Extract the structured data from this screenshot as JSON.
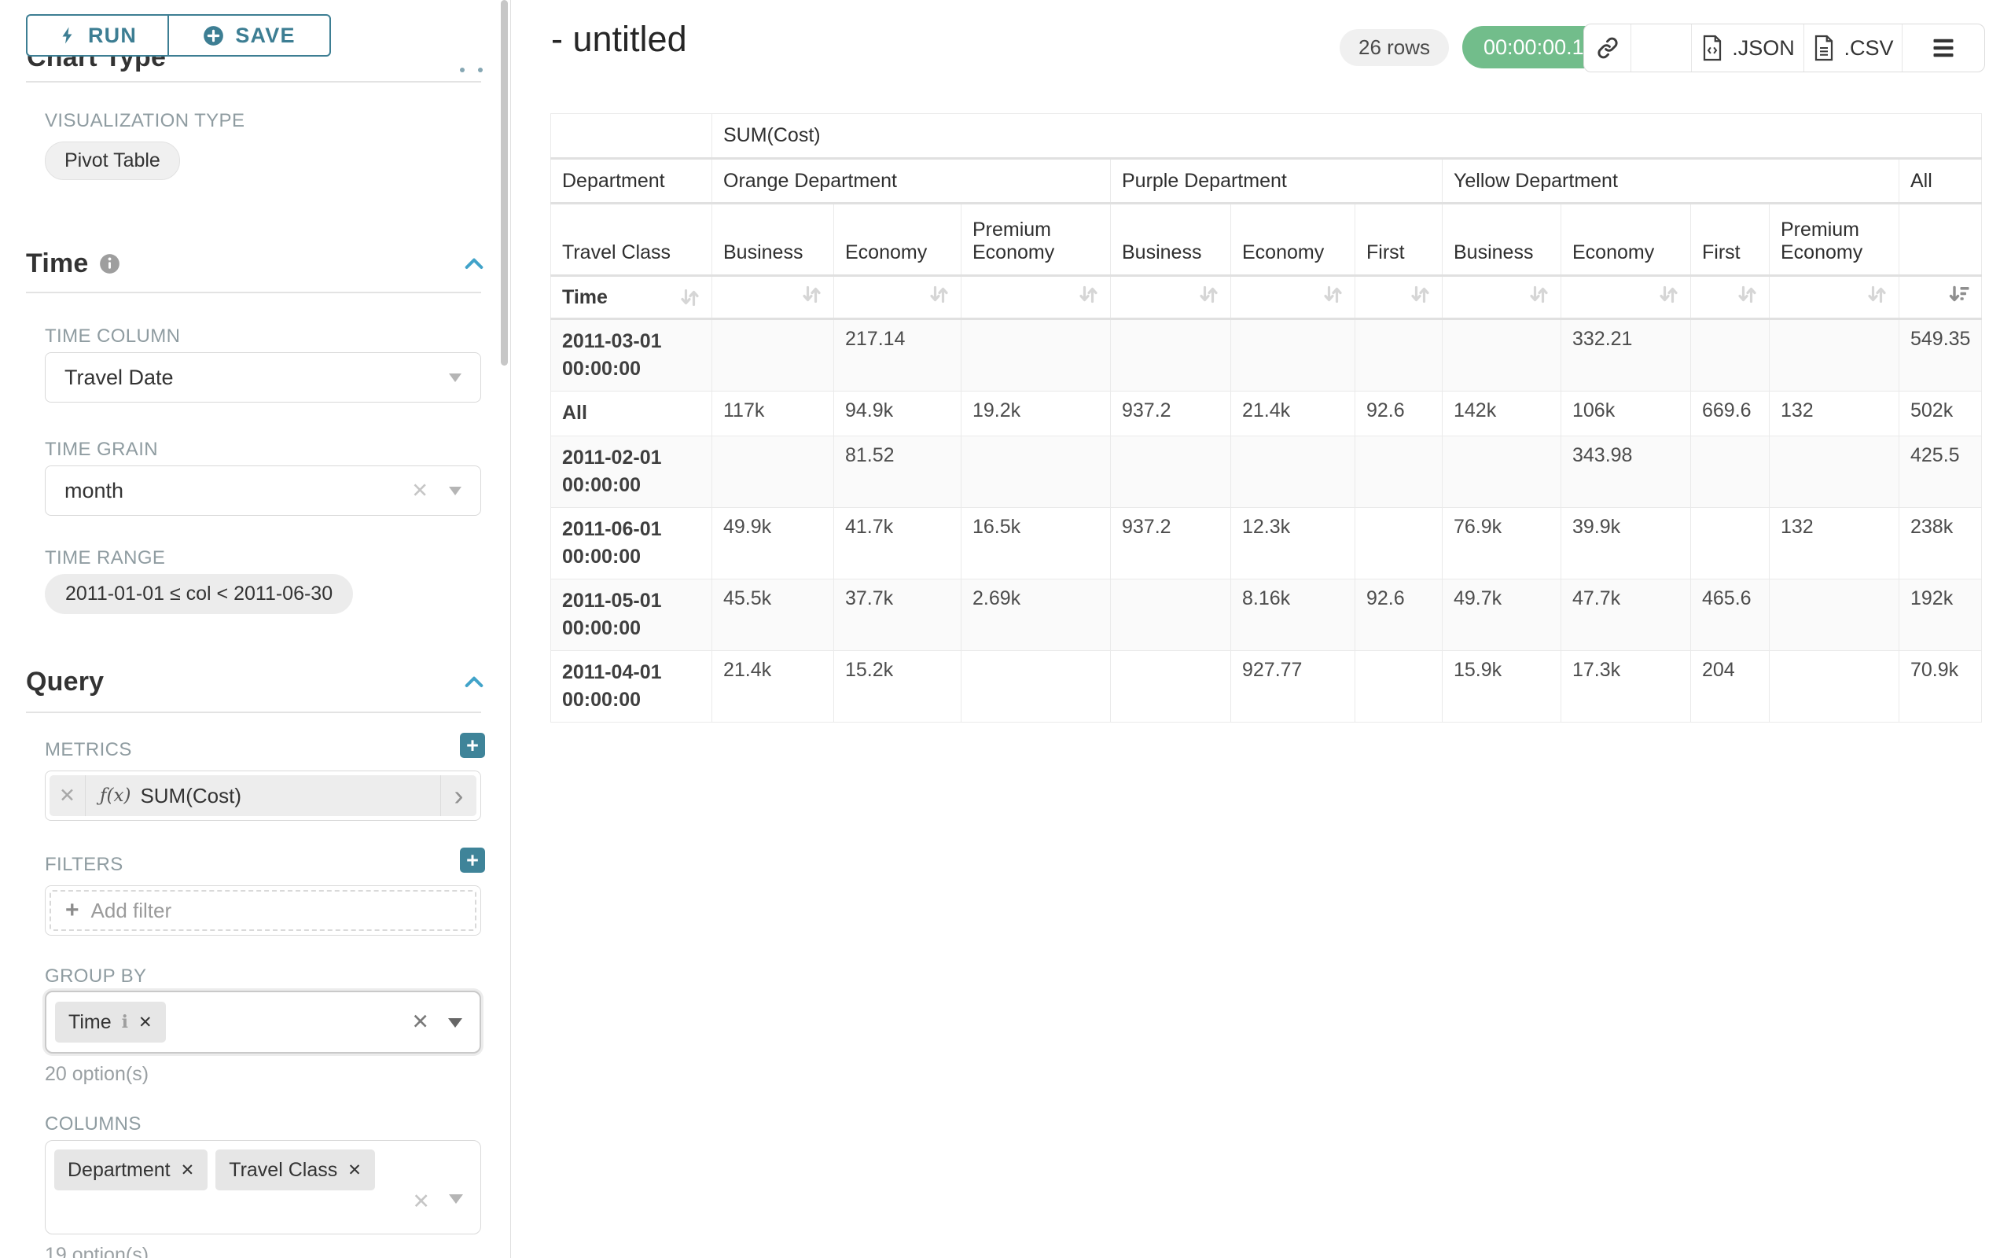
{
  "colors": {
    "accent": "#3d7e93",
    "section_chevron": "#41a3c9",
    "timer_green": "#72bd8b"
  },
  "sidebar": {
    "run_label": "RUN",
    "save_label": "SAVE",
    "chart_type_heading": "Chart Type",
    "visualization": {
      "label": "VISUALIZATION TYPE",
      "value": "Pivot Table"
    },
    "time_section": {
      "title": "Time",
      "time_column_label": "TIME COLUMN",
      "time_column_value": "Travel Date",
      "time_grain_label": "TIME GRAIN",
      "time_grain_value": "month",
      "time_range_label": "TIME RANGE",
      "time_range_value": "2011-01-01 ≤ col < 2011-06-30"
    },
    "query_section": {
      "title": "Query",
      "metrics_label": "METRICS",
      "metric_prefix": "ƒ(x)",
      "metric_value": "SUM(Cost)",
      "filters_label": "FILTERS",
      "add_filter_label": "Add filter",
      "group_by_label": "GROUP BY",
      "group_by_tags": [
        {
          "label": "Time",
          "info": true
        }
      ],
      "group_by_hint": "20 option(s)",
      "columns_label": "COLUMNS",
      "columns_tags": [
        "Department",
        "Travel Class"
      ],
      "columns_hint": "19 option(s)"
    }
  },
  "header": {
    "title": "- untitled",
    "rows_badge": "26 rows",
    "timer_badge": "00:00:00.18",
    "export_buttons": [
      {
        "name": "link-icon",
        "label": ""
      },
      {
        "name": "embed-code-icon",
        "label": "</>"
      },
      {
        "name": "file-json-icon",
        "label": ".JSON"
      },
      {
        "name": "file-csv-icon",
        "label": ".CSV"
      },
      {
        "name": "menu-icon",
        "label": ""
      }
    ]
  },
  "pivot_table": {
    "metric_header": "SUM(Cost)",
    "row_group_label": "Department",
    "row_class_label": "Travel Class",
    "sort_row_label": "Time",
    "column_groups": [
      {
        "label": "Orange Department",
        "children": [
          "Business",
          "Economy",
          "Premium Economy"
        ]
      },
      {
        "label": "Purple Department",
        "children": [
          "Business",
          "Economy",
          "First"
        ]
      },
      {
        "label": "Yellow Department",
        "children": [
          "Business",
          "Economy",
          "First",
          "Premium Economy"
        ]
      },
      {
        "label": "All",
        "children": [
          ""
        ]
      }
    ],
    "rows": [
      {
        "label": "2011-03-01 00:00:00",
        "values": [
          "",
          "217.14",
          "",
          "",
          "",
          "",
          "",
          "332.21",
          "",
          "",
          "549.35"
        ]
      },
      {
        "label": "All",
        "values": [
          "117k",
          "94.9k",
          "19.2k",
          "937.2",
          "21.4k",
          "92.6",
          "142k",
          "106k",
          "669.6",
          "132",
          "502k"
        ]
      },
      {
        "label": "2011-02-01 00:00:00",
        "values": [
          "",
          "81.52",
          "",
          "",
          "",
          "",
          "",
          "343.98",
          "",
          "",
          "425.5"
        ]
      },
      {
        "label": "2011-06-01 00:00:00",
        "values": [
          "49.9k",
          "41.7k",
          "16.5k",
          "937.2",
          "12.3k",
          "",
          "76.9k",
          "39.9k",
          "",
          "132",
          "238k"
        ]
      },
      {
        "label": "2011-05-01 00:00:00",
        "values": [
          "45.5k",
          "37.7k",
          "2.69k",
          "",
          "8.16k",
          "92.6",
          "49.7k",
          "47.7k",
          "465.6",
          "",
          "192k"
        ]
      },
      {
        "label": "2011-04-01 00:00:00",
        "values": [
          "21.4k",
          "15.2k",
          "",
          "",
          "927.77",
          "",
          "15.9k",
          "17.3k",
          "204",
          "",
          "70.9k"
        ]
      }
    ]
  }
}
